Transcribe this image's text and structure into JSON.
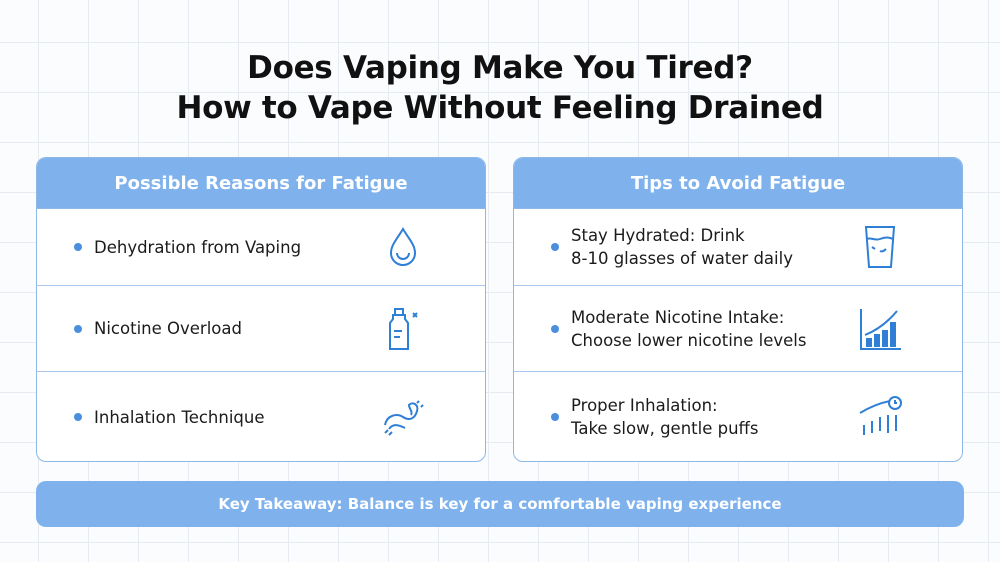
{
  "title": {
    "line1": "Does Vaping Make You Tired?",
    "line2": "How to Vape Without Feeling Drained"
  },
  "left": {
    "heading": "Possible Reasons for Fatigue",
    "items": [
      {
        "text": "Dehydration from Vaping",
        "icon": "water-drop-icon"
      },
      {
        "text": "Nicotine Overload",
        "icon": "nicotine-bottle-icon"
      },
      {
        "text": "Inhalation Technique",
        "icon": "breath-icon"
      }
    ]
  },
  "right": {
    "heading": "Tips to Avoid Fatigue",
    "items": [
      {
        "line1": "Stay Hydrated: Drink",
        "line2": "8-10 glasses of water daily",
        "icon": "water-glass-icon"
      },
      {
        "line1": "Moderate Nicotine Intake:",
        "line2": "Choose lower nicotine levels",
        "icon": "bar-chart-icon"
      },
      {
        "line1": "Proper Inhalation:",
        "line2": "Take slow, gentle puffs",
        "icon": "clock-chart-icon"
      }
    ]
  },
  "banner": "Key Takeaway: Balance is key for a comfortable vaping experience",
  "colors": {
    "accent": "#7fb2ec",
    "icon": "#2f7fd6"
  }
}
